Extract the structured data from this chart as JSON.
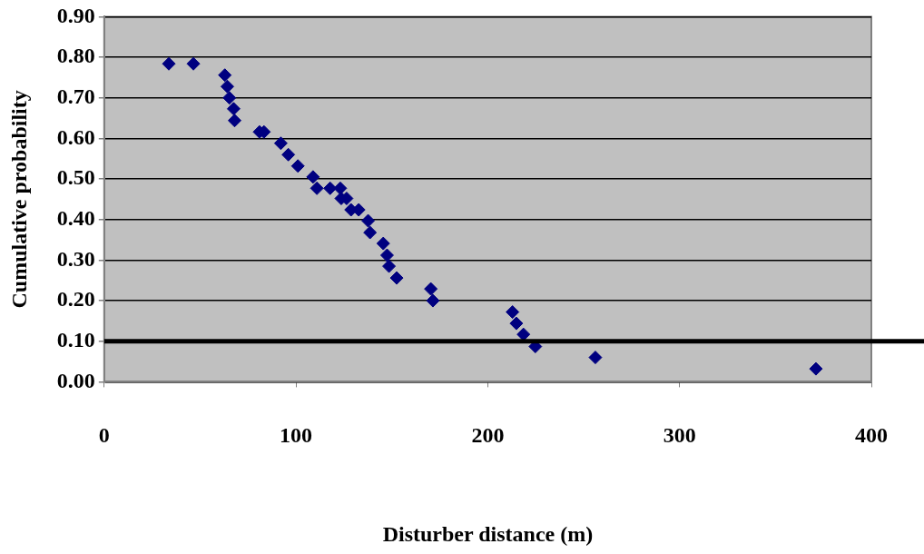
{
  "chart_data": {
    "type": "scatter",
    "xlabel": "Disturber distance (m)",
    "ylabel": "Cumulative probability",
    "x": [
      33.7,
      46.5,
      62.9,
      64.2,
      65.3,
      67.5,
      68.0,
      81.0,
      83.3,
      92.1,
      96.0,
      101.0,
      108.9,
      110.9,
      117.8,
      123.1,
      123.6,
      126.4,
      128.7,
      132.7,
      137.6,
      138.6,
      145.5,
      147.5,
      148.5,
      152.5,
      170.3,
      171.4,
      212.9,
      214.9,
      218.6,
      224.8,
      256.1,
      371.1
    ],
    "values": [
      0.784,
      0.784,
      0.756,
      0.728,
      0.7,
      0.673,
      0.644,
      0.616,
      0.616,
      0.588,
      0.56,
      0.532,
      0.505,
      0.477,
      0.477,
      0.477,
      0.452,
      0.452,
      0.424,
      0.424,
      0.397,
      0.368,
      0.341,
      0.312,
      0.285,
      0.256,
      0.229,
      0.2,
      0.172,
      0.144,
      0.117,
      0.087,
      0.06,
      0.032
    ],
    "color": "#000080",
    "marker": "diamond",
    "xlim": [
      0,
      400
    ],
    "xticks": [
      0,
      100,
      200,
      300,
      400
    ],
    "ylim": [
      0,
      0.9
    ],
    "yticks": [
      {
        "value": 0,
        "label": "0.00"
      },
      {
        "value": 0.1,
        "label": "0.10"
      },
      {
        "value": 0.2,
        "label": "0.20"
      },
      {
        "value": 0.3,
        "label": "0.30"
      },
      {
        "value": 0.4,
        "label": "0.40"
      },
      {
        "value": 0.5,
        "label": "0.50"
      },
      {
        "value": 0.6,
        "label": "0.60"
      },
      {
        "value": 0.7,
        "label": "0.70"
      },
      {
        "value": 0.8,
        "label": "0.80"
      },
      {
        "value": 0.9,
        "label": "0.90"
      }
    ],
    "grid": "y",
    "ref_lines": [
      {
        "axis": "y",
        "value": 0.1,
        "color": "#000000"
      }
    ]
  }
}
